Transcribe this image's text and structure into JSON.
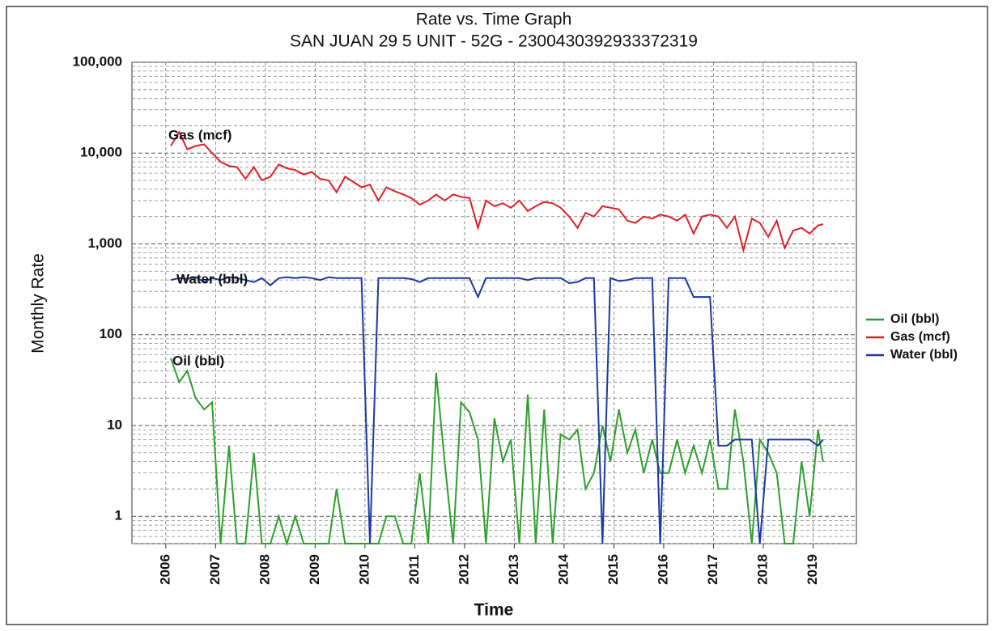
{
  "chart_data": {
    "type": "line",
    "title": "Rate vs. Time Graph",
    "subtitle": "SAN JUAN 29 5 UNIT - 52G - 2300430392933372319",
    "x_label": "Time",
    "y_label": "Monthly Rate",
    "log_scale": true,
    "grid": true,
    "legend": "right",
    "xlim": [
      2005.32,
      2019.87
    ],
    "xticks": [
      2006,
      2007,
      2008,
      2009,
      2010,
      2011,
      2012,
      2013,
      2014,
      2015,
      2016,
      2017,
      2018,
      2019
    ],
    "ylim": [
      0.5,
      100000
    ],
    "yticks": [
      1,
      10,
      100,
      {
        "value": 1000,
        "label": "1,000"
      },
      {
        "value": 10000,
        "label": "10,000"
      },
      {
        "value": 100000,
        "label": "100,000"
      }
    ],
    "x": [
      2006.1,
      2006.27,
      2006.43,
      2006.6,
      2006.77,
      2006.93,
      2007.1,
      2007.27,
      2007.43,
      2007.6,
      2007.77,
      2007.93,
      2008.1,
      2008.27,
      2008.43,
      2008.6,
      2008.77,
      2008.93,
      2009.1,
      2009.27,
      2009.43,
      2009.6,
      2009.77,
      2009.93,
      2010.1,
      2010.27,
      2010.43,
      2010.6,
      2010.77,
      2010.93,
      2011.1,
      2011.27,
      2011.43,
      2011.6,
      2011.77,
      2011.93,
      2012.1,
      2012.27,
      2012.43,
      2012.6,
      2012.77,
      2012.93,
      2013.1,
      2013.27,
      2013.43,
      2013.6,
      2013.77,
      2013.93,
      2014.1,
      2014.27,
      2014.43,
      2014.6,
      2014.77,
      2014.93,
      2015.1,
      2015.27,
      2015.43,
      2015.6,
      2015.77,
      2015.93,
      2016.1,
      2016.27,
      2016.43,
      2016.6,
      2016.77,
      2016.93,
      2017.1,
      2017.27,
      2017.43,
      2017.6,
      2017.77,
      2017.93,
      2018.1,
      2018.27,
      2018.43,
      2018.6,
      2018.77,
      2018.93,
      2019.1,
      2019.2
    ],
    "series": [
      {
        "name": "Oil (bbl)",
        "label": "Oil (bbl)",
        "color": "#2ca02c",
        "values": [
          55,
          30,
          40,
          20,
          15,
          18,
          0.5,
          6,
          0.5,
          0.5,
          5,
          0.5,
          0.5,
          1,
          0.5,
          1,
          0.5,
          0.5,
          0.5,
          0.5,
          2,
          0.5,
          0.5,
          0.5,
          0.5,
          0.5,
          1,
          1,
          0.5,
          0.5,
          3,
          0.5,
          38,
          4,
          0.5,
          18,
          14,
          7,
          0.5,
          12,
          4,
          7,
          0.5,
          22,
          0.5,
          15,
          0.5,
          8,
          7,
          9,
          2,
          3,
          10,
          4,
          15,
          5,
          9,
          3,
          7,
          3,
          3,
          7,
          3,
          6,
          3,
          7,
          2,
          2,
          15,
          4,
          0.5,
          7,
          5,
          3,
          0.5,
          0.5,
          4,
          1,
          9,
          4
        ]
      },
      {
        "name": "Gas (mcf)",
        "label": "Gas (mcf)",
        "color": "#e02028",
        "values": [
          12000,
          17000,
          11000,
          12000,
          12500,
          10000,
          8000,
          7200,
          7000,
          5200,
          7000,
          5000,
          5500,
          7500,
          6800,
          6500,
          5800,
          6200,
          5200,
          5000,
          3700,
          5500,
          4800,
          4200,
          4500,
          3000,
          4200,
          3800,
          3500,
          3200,
          2700,
          3000,
          3500,
          3000,
          3500,
          3300,
          3200,
          1500,
          3000,
          2600,
          2800,
          2500,
          3000,
          2300,
          2600,
          2900,
          2800,
          2500,
          2000,
          1500,
          2200,
          2000,
          2600,
          2500,
          2400,
          1800,
          1700,
          2000,
          1900,
          2100,
          2000,
          1800,
          2100,
          1300,
          2000,
          2100,
          2000,
          1500,
          2000,
          850,
          1900,
          1700,
          1200,
          1800,
          900,
          1400,
          1500,
          1300,
          1600,
          1650
        ]
      },
      {
        "name": "Water (bbl)",
        "label": "Water (bbl)",
        "color": "#1a3a9e",
        "values": [
          400,
          420,
          410,
          430,
          380,
          420,
          400,
          430,
          420,
          400,
          380,
          420,
          350,
          420,
          430,
          420,
          430,
          420,
          400,
          430,
          420,
          420,
          420,
          420,
          0.5,
          420,
          420,
          420,
          420,
          410,
          380,
          420,
          420,
          420,
          420,
          420,
          420,
          260,
          420,
          420,
          420,
          420,
          420,
          400,
          420,
          420,
          420,
          420,
          370,
          380,
          420,
          420,
          0.5,
          420,
          390,
          400,
          420,
          420,
          420,
          0.5,
          420,
          420,
          420,
          260,
          260,
          260,
          6,
          6,
          7,
          7,
          7,
          0.5,
          7,
          7,
          7,
          7,
          7,
          7,
          6,
          7
        ]
      }
    ]
  }
}
